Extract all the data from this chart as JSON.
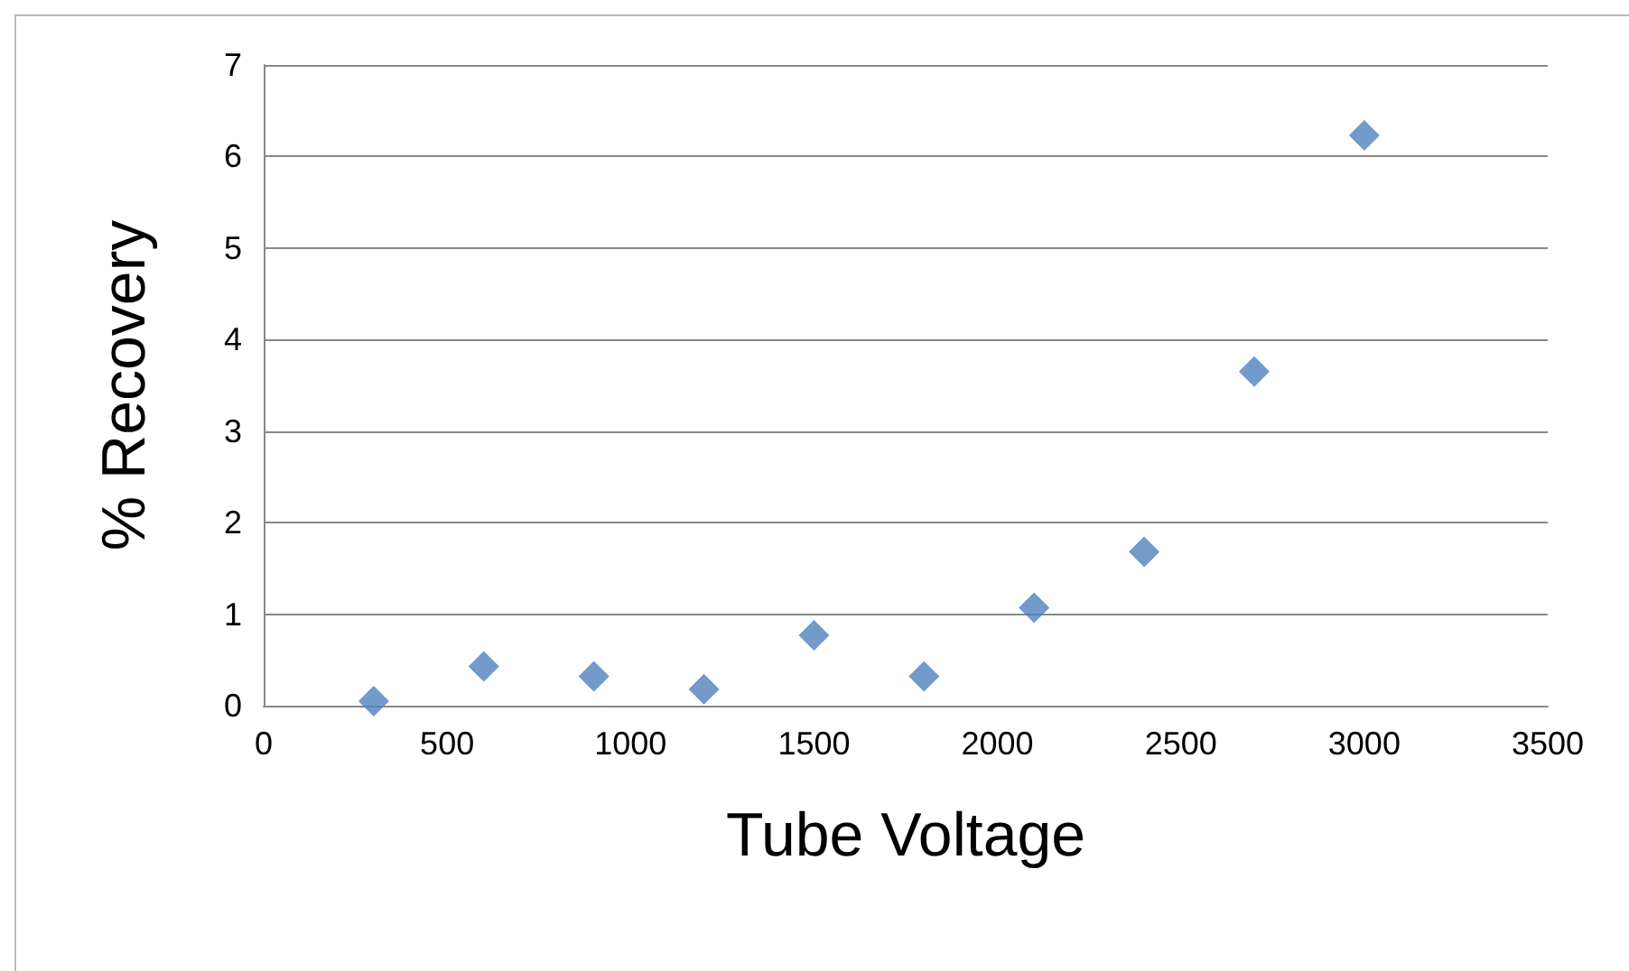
{
  "chart_data": {
    "type": "scatter",
    "xlabel": "Tube Voltage",
    "ylabel": "% Recovery",
    "x": [
      300,
      600,
      900,
      1200,
      1500,
      1800,
      2100,
      2400,
      2700,
      3000
    ],
    "values": [
      0.05,
      0.43,
      0.32,
      0.18,
      0.77,
      0.32,
      1.07,
      1.68,
      3.65,
      6.23
    ],
    "color": "#4f81bd",
    "marker": "diamond",
    "xlim": [
      0,
      3500
    ],
    "xticks": [
      0,
      500,
      1000,
      1500,
      2000,
      2500,
      3000,
      3500
    ],
    "ylim": [
      0,
      7
    ],
    "yticks": [
      0,
      1,
      2,
      3,
      4,
      5,
      6,
      7
    ],
    "grid": "y"
  }
}
